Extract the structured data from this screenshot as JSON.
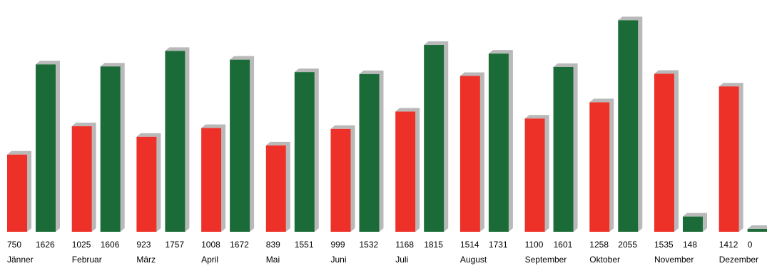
{
  "chart_data": {
    "type": "bar",
    "title": "",
    "xlabel": "",
    "ylabel": "",
    "ylim": [
      0,
      2120
    ],
    "grid": false,
    "legend": "none",
    "categories": [
      "Jänner",
      "Februar",
      "März",
      "April",
      "Mai",
      "Juni",
      "Juli",
      "August",
      "September",
      "Oktober",
      "November",
      "Dezember"
    ],
    "series": [
      {
        "color": "#ee3128",
        "values": [
          750,
          1025,
          923,
          1008,
          839,
          999,
          1168,
          1514,
          1100,
          1258,
          1535,
          1412
        ]
      },
      {
        "color": "#1b6b38",
        "values": [
          1626,
          1606,
          1757,
          1672,
          1551,
          1532,
          1815,
          1731,
          1601,
          2055,
          148,
          0
        ]
      }
    ],
    "shadow_color": "#b9b9b9"
  }
}
